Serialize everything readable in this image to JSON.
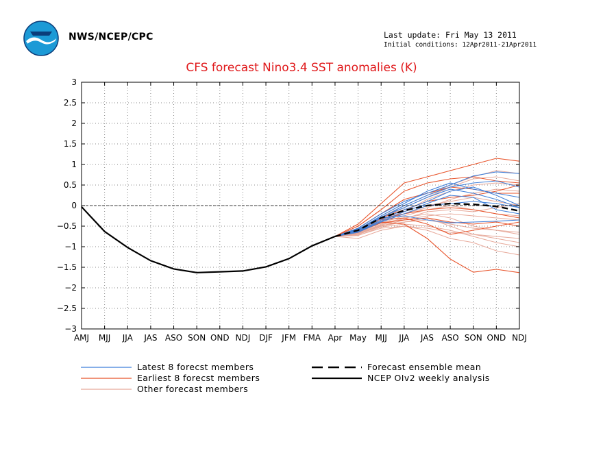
{
  "header": {
    "org": "NWS/NCEP/CPC",
    "last_update": "Last update: Fri May 13 2011",
    "initial_conditions": "Initial conditions: 12Apr2011-21Apr2011",
    "logo_name": "noaa-logo"
  },
  "chart_data": {
    "type": "line",
    "title": "CFS forecast Nino3.4 SST anomalies (K)",
    "xlabel": "",
    "ylabel": "",
    "categories": [
      "AMJ",
      "MJJ",
      "JJA",
      "JAS",
      "ASO",
      "SON",
      "OND",
      "NDJ",
      "DJF",
      "JFM",
      "FMA",
      "Apr",
      "May",
      "MJJ",
      "JJA",
      "JAS",
      "ASO",
      "SON",
      "OND",
      "NDJ"
    ],
    "ylim": [
      -3,
      3
    ],
    "yticks": [
      -3,
      -2.5,
      -2,
      -1.5,
      -1,
      -0.5,
      0,
      0.5,
      1,
      1.5,
      2,
      2.5,
      3
    ],
    "ytick_labels": [
      "−3",
      "−2.5",
      "−2",
      "−1.5",
      "−1",
      "−0.5",
      "0",
      "0.5",
      "1",
      "1.5",
      "2",
      "2.5",
      "3"
    ],
    "grid": true,
    "colors": {
      "latest": "#3f7fd9",
      "earliest": "#e8532a",
      "other": "#e7a99a",
      "zero_line": "#000000",
      "title": "#e0191b"
    },
    "analysis": {
      "name": "NCEP OIv2 weekly analysis",
      "x_index": [
        0,
        1,
        2,
        3,
        4,
        5,
        6,
        7,
        8,
        9,
        10,
        11
      ],
      "values": [
        -0.03,
        -0.63,
        -1.02,
        -1.34,
        -1.54,
        -1.63,
        -1.61,
        -1.59,
        -1.49,
        -1.29,
        -0.98,
        -0.75
      ]
    },
    "ensemble_mean": {
      "name": "Forecast ensemble mean",
      "x_index": [
        11,
        12,
        13,
        14,
        15,
        16,
        17,
        18,
        19
      ],
      "values": [
        -0.75,
        -0.6,
        -0.3,
        -0.12,
        0.0,
        0.05,
        0.03,
        -0.02,
        -0.13
      ]
    },
    "members": {
      "x_index": [
        11,
        12,
        13,
        14,
        15,
        16,
        17,
        18,
        19
      ],
      "latest": [
        [
          -0.75,
          -0.55,
          -0.2,
          0.1,
          0.3,
          0.5,
          0.72,
          0.82,
          0.78
        ],
        [
          -0.75,
          -0.6,
          -0.3,
          0.0,
          0.25,
          0.45,
          0.55,
          0.6,
          0.45
        ],
        [
          -0.75,
          -0.62,
          -0.35,
          -0.1,
          0.1,
          0.35,
          0.45,
          0.25,
          0.0
        ],
        [
          -0.75,
          -0.58,
          -0.25,
          0.05,
          0.35,
          0.55,
          0.4,
          0.3,
          0.2
        ],
        [
          -0.75,
          -0.65,
          -0.4,
          -0.2,
          0.0,
          0.05,
          0.1,
          0.05,
          -0.05
        ],
        [
          -0.75,
          -0.6,
          -0.3,
          -0.25,
          -0.35,
          -0.42,
          -0.4,
          -0.38,
          -0.35
        ],
        [
          -0.75,
          -0.63,
          -0.38,
          -0.15,
          0.05,
          0.25,
          0.2,
          -0.1,
          -0.2
        ],
        [
          -0.75,
          -0.57,
          -0.28,
          -0.05,
          0.2,
          0.4,
          0.3,
          0.15,
          -0.05
        ]
      ],
      "earliest": [
        [
          -0.75,
          -0.45,
          0.05,
          0.55,
          0.7,
          0.85,
          1.0,
          1.15,
          1.08
        ],
        [
          -0.75,
          -0.5,
          -0.1,
          0.35,
          0.55,
          0.65,
          0.7,
          0.6,
          0.55
        ],
        [
          -0.75,
          -0.55,
          -0.2,
          0.15,
          0.3,
          0.45,
          0.4,
          0.3,
          0.3
        ],
        [
          -0.75,
          -0.6,
          -0.3,
          -0.1,
          0.1,
          0.2,
          0.25,
          0.35,
          0.5
        ],
        [
          -0.75,
          -0.62,
          -0.35,
          -0.3,
          -0.45,
          -0.7,
          -0.6,
          -0.5,
          -0.4
        ],
        [
          -0.75,
          -0.65,
          -0.4,
          -0.45,
          -0.8,
          -1.3,
          -1.62,
          -1.55,
          -1.63
        ],
        [
          -0.75,
          -0.58,
          -0.32,
          -0.2,
          -0.1,
          -0.05,
          -0.1,
          -0.2,
          -0.3
        ],
        [
          -0.75,
          -0.63,
          -0.42,
          -0.35,
          -0.3,
          -0.4,
          -0.45,
          -0.4,
          -0.5
        ]
      ],
      "other": [
        [
          -0.75,
          -0.7,
          -0.5,
          -0.4,
          -0.3,
          -0.5,
          -0.7,
          -0.8,
          -0.9
        ],
        [
          -0.75,
          -0.72,
          -0.55,
          -0.5,
          -0.6,
          -0.8,
          -0.9,
          -1.1,
          -1.2
        ],
        [
          -0.75,
          -0.68,
          -0.45,
          -0.3,
          -0.2,
          -0.3,
          -0.5,
          -0.6,
          -0.7
        ],
        [
          -0.75,
          -0.66,
          -0.4,
          -0.2,
          0.0,
          0.1,
          0.2,
          0.1,
          0.0
        ],
        [
          -0.75,
          -0.64,
          -0.35,
          -0.15,
          0.15,
          0.35,
          0.5,
          0.55,
          0.5
        ],
        [
          -0.75,
          -0.7,
          -0.5,
          -0.35,
          -0.25,
          -0.2,
          -0.25,
          -0.3,
          -0.35
        ],
        [
          -0.75,
          -0.62,
          -0.32,
          -0.05,
          0.2,
          0.45,
          0.65,
          0.7,
          0.6
        ],
        [
          -0.75,
          -0.8,
          -0.6,
          -0.5,
          -0.55,
          -0.65,
          -0.7,
          -0.75,
          -0.8
        ],
        [
          -0.75,
          -0.67,
          -0.42,
          -0.25,
          -0.1,
          0.0,
          -0.1,
          -0.2,
          -0.25
        ],
        [
          -0.75,
          -0.65,
          -0.38,
          -0.2,
          -0.05,
          0.15,
          0.3,
          0.4,
          0.35
        ],
        [
          -0.75,
          -0.7,
          -0.48,
          -0.4,
          -0.35,
          -0.45,
          -0.55,
          -0.6,
          -0.65
        ],
        [
          -0.75,
          -0.73,
          -0.52,
          -0.45,
          -0.5,
          -0.6,
          -0.75,
          -0.9,
          -1.0
        ],
        [
          -0.75,
          -0.6,
          -0.28,
          0.0,
          0.25,
          0.5,
          0.7,
          0.85,
          0.78
        ],
        [
          -0.75,
          -0.69,
          -0.47,
          -0.32,
          -0.15,
          -0.1,
          -0.15,
          -0.05,
          0.05
        ]
      ]
    },
    "legend": [
      {
        "label": "Latest 8 forecst members",
        "style": "latest"
      },
      {
        "label": "Earliest 8 forecst members",
        "style": "earliest"
      },
      {
        "label": "Other forecast members",
        "style": "other"
      },
      {
        "label": "Forecast ensemble mean",
        "style": "mean"
      },
      {
        "label": "NCEP OIv2 weekly analysis",
        "style": "analysis"
      }
    ]
  }
}
